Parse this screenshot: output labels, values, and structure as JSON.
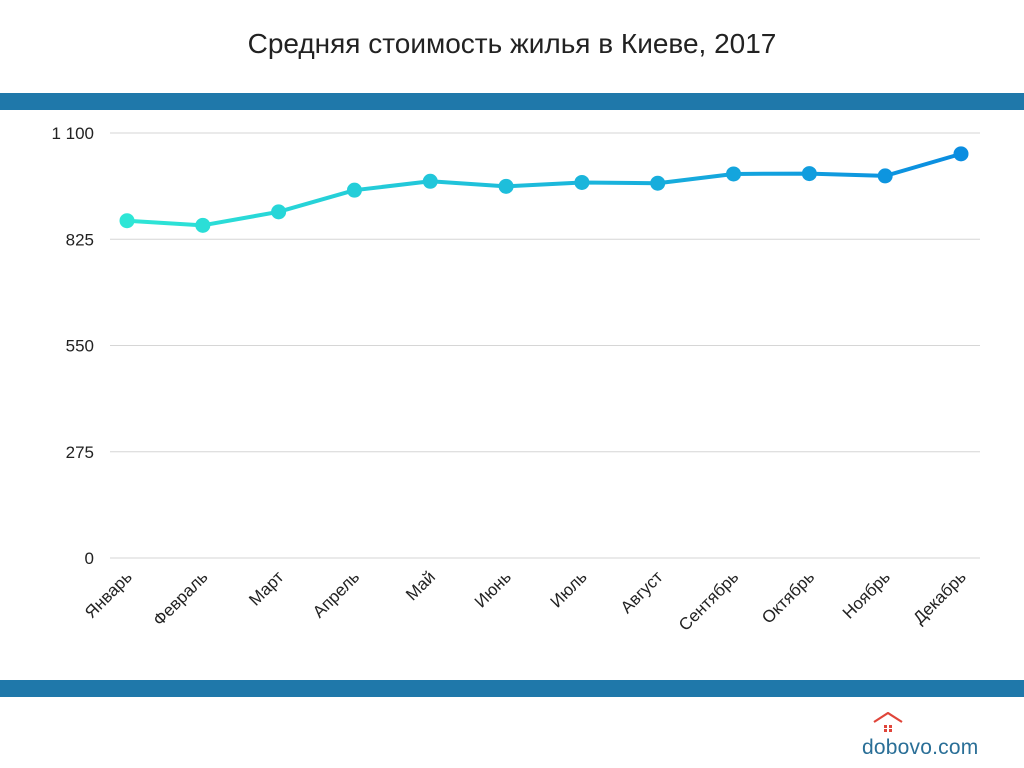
{
  "colors": {
    "band": "#1f78aa",
    "grid": "#d6d6d6",
    "text": "#222222",
    "line_start": "#2ee6d6",
    "line_end": "#0a8de0",
    "logo": "#2a6f97",
    "logo_house": "#e0453a"
  },
  "logo": {
    "text": "dobovo.com",
    "icon": "house-icon"
  },
  "chart_data": {
    "type": "line",
    "title": "Средняя стоимость жилья в Киеве, 2017",
    "xlabel": "",
    "ylabel": "",
    "ylim": [
      0,
      1100
    ],
    "yticks": [
      0,
      275,
      550,
      825,
      1100
    ],
    "ytick_labels": [
      "0",
      "275",
      "550",
      "825",
      "1 100"
    ],
    "grid": true,
    "legend": "none",
    "categories": [
      "Январь",
      "Февраль",
      "Март",
      "Апрель",
      "Май",
      "Июнь",
      "Июль",
      "Август",
      "Сентябрь",
      "Октябрь",
      "Ноябрь",
      "Декабрь"
    ],
    "series": [
      {
        "values": [
          873,
          861,
          896,
          952,
          975,
          962,
          972,
          970,
          994,
          995,
          989,
          1046
        ]
      }
    ]
  }
}
